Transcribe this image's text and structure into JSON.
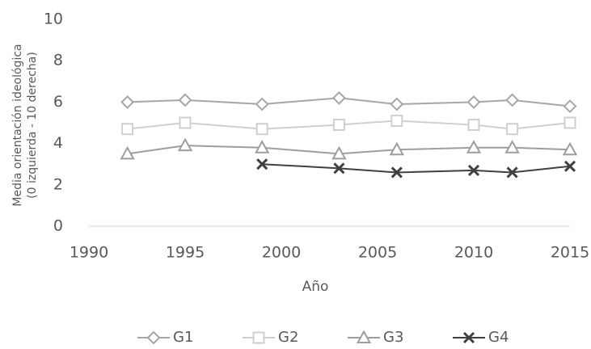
{
  "chart_data": {
    "type": "line",
    "y_label": [
      "Media orientación ideológica",
      "(0 izquierda - 10 derecha)"
    ],
    "x_label": "Año",
    "x": [
      1992,
      1995,
      1999,
      2003,
      2006,
      2010,
      2012,
      2015
    ],
    "xlim": [
      1990,
      2015
    ],
    "xticks": [
      1990,
      1995,
      2000,
      2005,
      2010,
      2015
    ],
    "ylim": [
      0,
      10
    ],
    "yticks": [
      0,
      2,
      4,
      6,
      8,
      10
    ],
    "grid": false,
    "legend": "bottom",
    "series": [
      {
        "name": "G1",
        "color": "#a6a6a6",
        "marker": "diamond",
        "values": [
          6.0,
          6.1,
          5.9,
          6.2,
          5.9,
          6.0,
          6.1,
          5.8
        ]
      },
      {
        "name": "G2",
        "color": "#cfcfcf",
        "marker": "square",
        "values": [
          4.7,
          5.0,
          4.7,
          4.9,
          5.1,
          4.9,
          4.7,
          5.0
        ]
      },
      {
        "name": "G3",
        "color": "#9e9e9e",
        "marker": "triangle",
        "values": [
          3.5,
          3.9,
          3.8,
          3.5,
          3.7,
          3.8,
          3.8,
          3.7
        ]
      },
      {
        "name": "G4",
        "color": "#404040",
        "marker": "cross",
        "values": [
          null,
          null,
          3.0,
          2.8,
          2.6,
          2.7,
          2.6,
          2.9
        ]
      }
    ]
  }
}
